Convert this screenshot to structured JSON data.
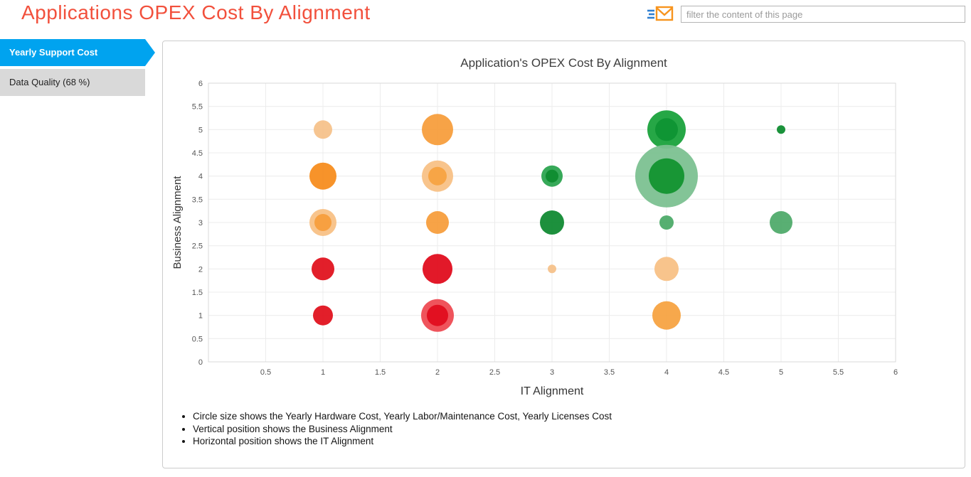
{
  "page": {
    "title": "Applications OPEX Cost By Alignment"
  },
  "toolbar": {
    "filter_placeholder": "filter the content of this page"
  },
  "sidebar": {
    "items": [
      {
        "label": "Yearly Support Cost",
        "active": true
      },
      {
        "label": "Data Quality (68 %)",
        "active": false
      }
    ]
  },
  "chart_data": {
    "type": "scatter",
    "title": "Application's OPEX Cost By Alignment",
    "xlabel": "IT Alignment",
    "ylabel": "Business Alignment",
    "xlim": [
      0,
      6
    ],
    "ylim": [
      0,
      6
    ],
    "tick_step": 0.5,
    "grid": true,
    "legend_position": "none",
    "colors": {
      "low_alignment": "#e00d1d",
      "mid_alignment": "#f79e3d",
      "high_alignment": "#17a23b"
    },
    "bubbles": [
      {
        "x": 1,
        "y": 5,
        "r": 13,
        "color": "#f6c28b"
      },
      {
        "x": 2,
        "y": 5,
        "r": 22,
        "color": "#f79e3d"
      },
      {
        "x": 4,
        "y": 5,
        "r": 27,
        "color": "#1aa23c"
      },
      {
        "x": 4,
        "y": 5,
        "r": 16,
        "color": "#0e9434"
      },
      {
        "x": 5,
        "y": 5,
        "r": 6,
        "color": "#0f8c30"
      },
      {
        "x": 1,
        "y": 4,
        "r": 19,
        "color": "#f78d1f"
      },
      {
        "x": 2,
        "y": 4,
        "r": 22,
        "color": "#f8c186"
      },
      {
        "x": 2,
        "y": 4,
        "r": 13,
        "color": "#f7a342"
      },
      {
        "x": 3,
        "y": 4,
        "r": 15,
        "color": "#2ca450"
      },
      {
        "x": 3,
        "y": 4,
        "r": 9,
        "color": "#0e8c30"
      },
      {
        "x": 4,
        "y": 4,
        "r": 44,
        "color": "#7cc191"
      },
      {
        "x": 4,
        "y": 4,
        "r": 25,
        "color": "#12942f"
      },
      {
        "x": 1,
        "y": 3,
        "r": 19,
        "color": "#f8c186"
      },
      {
        "x": 1,
        "y": 3,
        "r": 12,
        "color": "#f79e3d"
      },
      {
        "x": 2,
        "y": 3,
        "r": 16,
        "color": "#f79e3d"
      },
      {
        "x": 3,
        "y": 3,
        "r": 17,
        "color": "#118a33"
      },
      {
        "x": 4,
        "y": 3,
        "r": 10,
        "color": "#4dab69"
      },
      {
        "x": 5,
        "y": 3,
        "r": 16,
        "color": "#50ab6b"
      },
      {
        "x": 1,
        "y": 2,
        "r": 16,
        "color": "#e0131f"
      },
      {
        "x": 2,
        "y": 2,
        "r": 21,
        "color": "#e00d1d"
      },
      {
        "x": 3,
        "y": 2,
        "r": 6,
        "color": "#f6c28b"
      },
      {
        "x": 4,
        "y": 2,
        "r": 17,
        "color": "#f8c186"
      },
      {
        "x": 1,
        "y": 1,
        "r": 14,
        "color": "#e0131f"
      },
      {
        "x": 2,
        "y": 1,
        "r": 23,
        "color": "#ee4b53"
      },
      {
        "x": 2,
        "y": 1,
        "r": 15,
        "color": "#e00d1d"
      },
      {
        "x": 4,
        "y": 1,
        "r": 20,
        "color": "#f7a342"
      }
    ]
  },
  "notes": [
    "Circle size shows the Yearly Hardware Cost, Yearly Labor/Maintenance Cost, Yearly Licenses Cost",
    "Vertical position shows the Business Alignment",
    "Horizontal position shows the IT Alignment"
  ]
}
